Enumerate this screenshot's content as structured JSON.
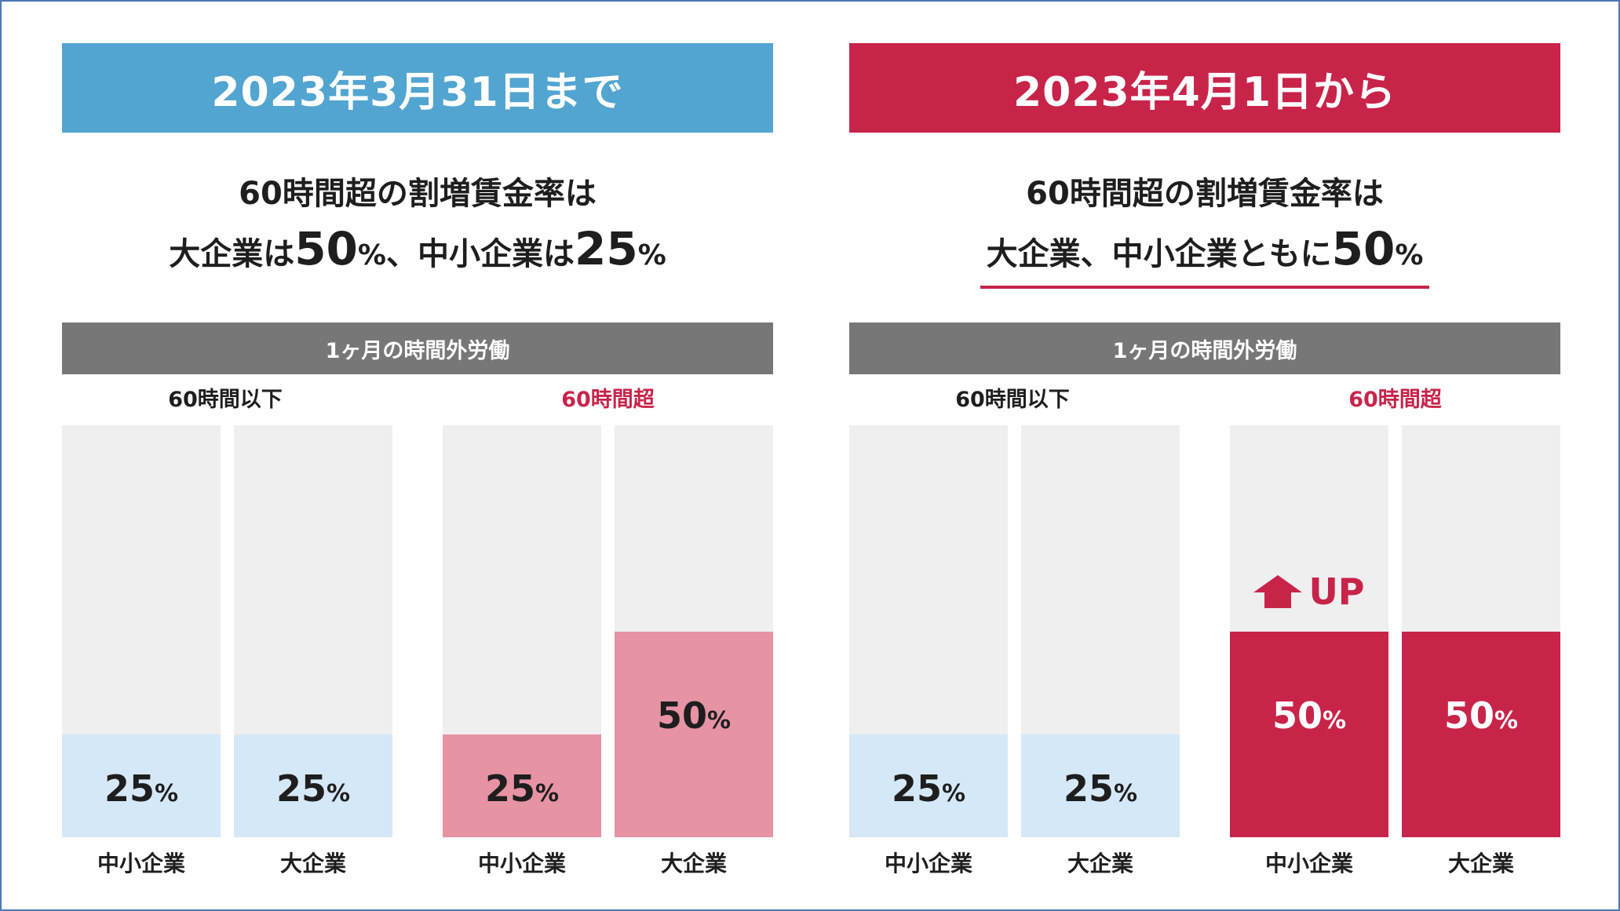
{
  "colors": {
    "left_banner": "#52a5d0",
    "right_banner": "#c8244a",
    "light_blue": "#d5e8f8",
    "light_pink": "#e693a4",
    "crimson": "#c8244a",
    "gray_header": "#777777"
  },
  "left": {
    "banner": "2023年3月31日まで",
    "line1": "60時間超の割増賃金率は",
    "line2": {
      "a": "大企業は",
      "b": "50",
      "c": "%",
      "d": "、中小企業は",
      "e": "25",
      "f": "%"
    },
    "header": "1ヶ月の時間外労働",
    "group_under": "60時間以下",
    "group_over": "60時間超"
  },
  "right": {
    "banner": "2023年4月1日から",
    "line1": "60時間超の割増賃金率は",
    "line2": {
      "a": "大企業、中小企業ともに",
      "b": "50",
      "c": "%"
    },
    "header": "1ヶ月の時間外労働",
    "group_under": "60時間以下",
    "group_over": "60時間超",
    "up_label": "UP"
  },
  "chart_data": [
    {
      "type": "bar",
      "title": "2023年3月31日まで",
      "ylim": [
        0,
        100
      ],
      "unit": "%",
      "groups": [
        "60時間以下",
        "60時間超"
      ],
      "categories": [
        "中小企業",
        "大企業",
        "中小企業",
        "大企業"
      ],
      "values": [
        25,
        25,
        25,
        50
      ],
      "labels": [
        "25",
        "25",
        "25",
        "50"
      ]
    },
    {
      "type": "bar",
      "title": "2023年4月1日から",
      "ylim": [
        0,
        100
      ],
      "unit": "%",
      "groups": [
        "60時間以下",
        "60時間超"
      ],
      "categories": [
        "中小企業",
        "大企業",
        "中小企業",
        "大企業"
      ],
      "values": [
        25,
        25,
        50,
        50
      ],
      "labels": [
        "25",
        "25",
        "50",
        "50"
      ]
    }
  ]
}
